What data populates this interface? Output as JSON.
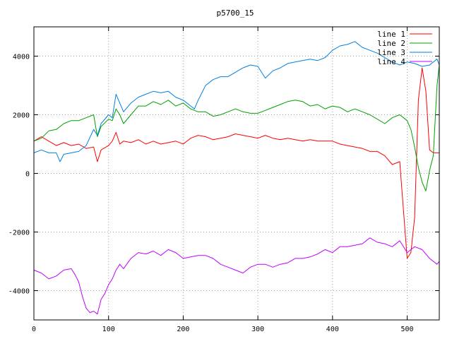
{
  "chart_data": {
    "type": "line",
    "title": "p5700_15",
    "xlabel": "",
    "ylabel": "",
    "xlim": [
      0,
      543
    ],
    "ylim": [
      -5000,
      5000
    ],
    "x_ticks": [
      0,
      100,
      200,
      300,
      400,
      500
    ],
    "y_ticks": [
      -4000,
      -2000,
      0,
      2000,
      4000
    ],
    "grid": true,
    "legend_position": "top-right",
    "series": [
      {
        "name": "line 1",
        "color": "#ff0000",
        "x": [
          0,
          10,
          20,
          30,
          40,
          50,
          60,
          70,
          80,
          85,
          90,
          100,
          105,
          110,
          115,
          120,
          130,
          140,
          150,
          160,
          170,
          180,
          190,
          200,
          210,
          220,
          230,
          240,
          250,
          260,
          270,
          280,
          290,
          300,
          310,
          320,
          330,
          340,
          350,
          360,
          370,
          380,
          390,
          400,
          410,
          420,
          430,
          440,
          450,
          460,
          470,
          480,
          490,
          500,
          505,
          510,
          515,
          520,
          525,
          530,
          535,
          540,
          543
        ],
        "y": [
          1100,
          1250,
          1100,
          950,
          1050,
          950,
          1000,
          850,
          900,
          400,
          800,
          950,
          1100,
          1400,
          1000,
          1100,
          1050,
          1150,
          1000,
          1100,
          1000,
          1050,
          1100,
          1000,
          1200,
          1300,
          1250,
          1150,
          1200,
          1250,
          1350,
          1300,
          1250,
          1200,
          1300,
          1200,
          1150,
          1200,
          1150,
          1100,
          1150,
          1100,
          1100,
          1100,
          1000,
          950,
          900,
          850,
          750,
          750,
          600,
          300,
          400,
          -2900,
          -2700,
          -1500,
          2500,
          3600,
          2800,
          800,
          700,
          700,
          700
        ]
      },
      {
        "name": "line 2",
        "color": "#00a000",
        "x": [
          0,
          10,
          20,
          30,
          40,
          50,
          60,
          70,
          80,
          85,
          90,
          100,
          105,
          110,
          115,
          120,
          130,
          140,
          150,
          160,
          170,
          180,
          190,
          200,
          210,
          220,
          230,
          240,
          250,
          260,
          270,
          280,
          290,
          300,
          310,
          320,
          330,
          340,
          350,
          360,
          370,
          380,
          390,
          400,
          410,
          420,
          430,
          440,
          450,
          460,
          470,
          480,
          490,
          500,
          505,
          510,
          515,
          520,
          525,
          530,
          535,
          540,
          543
        ],
        "y": [
          1100,
          1200,
          1450,
          1500,
          1700,
          1800,
          1800,
          1900,
          2000,
          1250,
          1600,
          1850,
          1800,
          2200,
          2000,
          1700,
          2000,
          2300,
          2300,
          2450,
          2350,
          2500,
          2300,
          2400,
          2200,
          2100,
          2100,
          1950,
          2000,
          2100,
          2200,
          2100,
          2050,
          2050,
          2150,
          2250,
          2350,
          2450,
          2500,
          2450,
          2300,
          2350,
          2200,
          2300,
          2250,
          2100,
          2200,
          2100,
          2000,
          1850,
          1700,
          1900,
          2000,
          1800,
          1500,
          900,
          200,
          -300,
          -600,
          100,
          600,
          3000,
          3700
        ]
      },
      {
        "name": "line 3",
        "color": "#0080e0",
        "x": [
          0,
          10,
          20,
          30,
          35,
          40,
          50,
          60,
          70,
          80,
          85,
          90,
          100,
          105,
          110,
          115,
          120,
          130,
          140,
          150,
          160,
          170,
          180,
          190,
          200,
          210,
          215,
          220,
          230,
          240,
          250,
          260,
          270,
          280,
          290,
          300,
          310,
          320,
          330,
          340,
          350,
          360,
          370,
          380,
          390,
          400,
          410,
          420,
          430,
          440,
          450,
          460,
          470,
          480,
          490,
          500,
          510,
          520,
          530,
          540,
          543
        ],
        "y": [
          700,
          800,
          700,
          700,
          400,
          650,
          700,
          750,
          950,
          1500,
          1300,
          1700,
          2000,
          1900,
          2700,
          2400,
          2100,
          2400,
          2600,
          2700,
          2800,
          2750,
          2800,
          2600,
          2500,
          2300,
          2200,
          2500,
          3000,
          3200,
          3300,
          3300,
          3450,
          3600,
          3700,
          3650,
          3250,
          3500,
          3600,
          3750,
          3800,
          3850,
          3900,
          3850,
          3950,
          4200,
          4350,
          4400,
          4500,
          4300,
          4200,
          4100,
          3950,
          3800,
          3700,
          3800,
          3750,
          3650,
          3700,
          3900,
          3700
        ]
      },
      {
        "name": "line 4",
        "color": "#c000ff",
        "x": [
          0,
          10,
          20,
          30,
          40,
          50,
          55,
          60,
          65,
          70,
          75,
          80,
          85,
          90,
          95,
          100,
          105,
          110,
          115,
          120,
          130,
          140,
          150,
          160,
          170,
          180,
          190,
          200,
          210,
          220,
          230,
          240,
          250,
          260,
          270,
          280,
          290,
          300,
          310,
          320,
          330,
          340,
          350,
          360,
          370,
          380,
          390,
          400,
          410,
          420,
          430,
          440,
          450,
          460,
          470,
          480,
          490,
          500,
          510,
          520,
          530,
          540,
          543
        ],
        "y": [
          -3300,
          -3400,
          -3600,
          -3500,
          -3300,
          -3250,
          -3450,
          -3700,
          -4200,
          -4600,
          -4750,
          -4700,
          -4800,
          -4300,
          -4100,
          -3800,
          -3600,
          -3300,
          -3100,
          -3250,
          -2900,
          -2700,
          -2750,
          -2650,
          -2800,
          -2600,
          -2700,
          -2900,
          -2850,
          -2800,
          -2800,
          -2900,
          -3100,
          -3200,
          -3300,
          -3400,
          -3200,
          -3100,
          -3100,
          -3200,
          -3100,
          -3050,
          -2900,
          -2900,
          -2850,
          -2750,
          -2600,
          -2700,
          -2500,
          -2500,
          -2450,
          -2400,
          -2200,
          -2350,
          -2400,
          -2500,
          -2300,
          -2700,
          -2500,
          -2600,
          -2900,
          -3100,
          -3000
        ]
      }
    ]
  }
}
